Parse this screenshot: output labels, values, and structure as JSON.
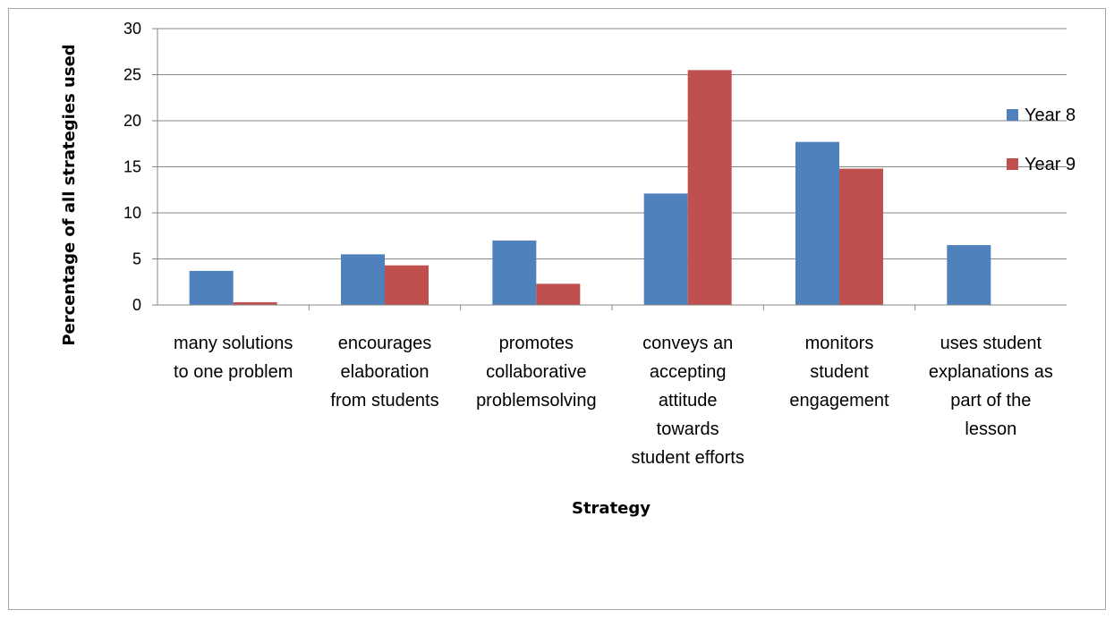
{
  "chart_data": {
    "type": "bar",
    "title": "",
    "xlabel": "Strategy",
    "ylabel": "Percentage of all strategies used",
    "ylim": [
      0,
      30
    ],
    "yticks": [
      0,
      5,
      10,
      15,
      20,
      25,
      30
    ],
    "grid": true,
    "legend_position": "right",
    "categories": [
      [
        "many solutions",
        "to one problem"
      ],
      [
        "encourages",
        "elaboration",
        "from students"
      ],
      [
        "promotes",
        "collaborative",
        "problemsolving"
      ],
      [
        "conveys an",
        "accepting",
        "attitude",
        "towards",
        "student efforts"
      ],
      [
        "monitors",
        "student",
        "engagement"
      ],
      [
        "uses student",
        "explanations as",
        "part of the",
        "lesson"
      ]
    ],
    "series": [
      {
        "name": "Year 8",
        "color": "#4f81bd",
        "values": [
          3.7,
          5.5,
          7.0,
          12.1,
          17.7,
          6.5
        ]
      },
      {
        "name": "Year 9",
        "color": "#c0504d",
        "values": [
          0.3,
          4.3,
          2.3,
          25.5,
          14.8,
          0
        ]
      }
    ]
  }
}
